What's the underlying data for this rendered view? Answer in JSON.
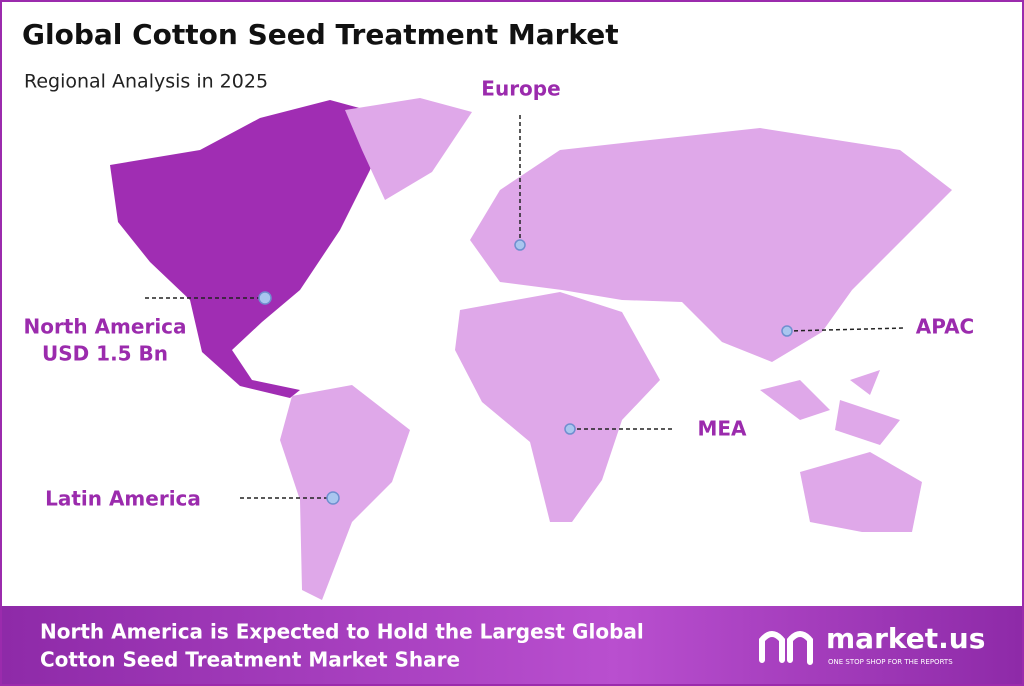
{
  "header": {
    "title": "Global Cotton Seed Treatment Market",
    "subtitle": "Regional Analysis in 2025"
  },
  "regions": [
    {
      "name": "Europe"
    },
    {
      "name": "North America",
      "value": "USD 1.5 Bn"
    },
    {
      "name": "APAC"
    },
    {
      "name": "MEA"
    },
    {
      "name": "Latin America"
    }
  ],
  "footer": {
    "lines": [
      "North America is Expected to Hold the Largest Global",
      "Cotton Seed Treatment Market Share"
    ],
    "logo": {
      "name": "market.us",
      "tagline": "ONE STOP SHOP FOR THE REPORTS"
    }
  }
}
